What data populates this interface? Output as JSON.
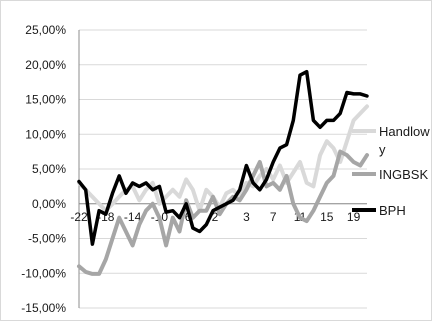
{
  "chart_data": {
    "type": "line",
    "title": "",
    "xlabel": "",
    "ylabel": "",
    "ylim": [
      -0.15,
      0.25
    ],
    "y_ticks": [
      "25,00%",
      "20,00%",
      "15,00%",
      "10,00%",
      "5,00%",
      "0,00%",
      "-5,00%",
      "-10,00%",
      "-15,00%"
    ],
    "x_tick_labels": [
      "-22",
      "-18",
      "-14",
      "-10",
      "-6",
      "-2",
      "3",
      "7",
      "11",
      "15",
      "19"
    ],
    "x_tick_values": [
      -22,
      -18,
      -14,
      -10,
      -6,
      -2,
      3,
      7,
      11,
      15,
      19
    ],
    "x": [
      -22,
      -21,
      -20,
      -19,
      -18,
      -17,
      -16,
      -15,
      -14,
      -13,
      -12,
      -11,
      -10,
      -9,
      -8,
      -7,
      -6,
      -5,
      -4,
      -3,
      -2,
      -1,
      0,
      1,
      2,
      3,
      4,
      5,
      6,
      7,
      8,
      9,
      10,
      11,
      12,
      13,
      14,
      15,
      16,
      17,
      18,
      19,
      20,
      21
    ],
    "grid": "horizontal",
    "legend_position": "right",
    "series": [
      {
        "name": "Handlowy",
        "legend_lines": [
          "Handlow",
          "y"
        ],
        "color": "#d9d9d9",
        "values": [
          0.03,
          0.02,
          0.01,
          0.0,
          -0.01,
          0.0,
          0.01,
          0.02,
          0.025,
          0.005,
          0.02,
          0.03,
          0.0,
          0.01,
          0.02,
          0.01,
          0.035,
          0.02,
          -0.01,
          0.02,
          0.01,
          -0.005,
          0.015,
          0.02,
          0.01,
          0.03,
          0.025,
          0.04,
          0.05,
          0.035,
          0.055,
          0.03,
          0.045,
          0.06,
          0.03,
          0.025,
          0.07,
          0.09,
          0.08,
          0.06,
          0.09,
          0.12,
          0.13,
          0.14
        ]
      },
      {
        "name": "INGBSK",
        "legend_lines": [
          "INGBSK"
        ],
        "color": "#a6a6a6",
        "values": [
          -0.09,
          -0.098,
          -0.101,
          -0.101,
          -0.08,
          -0.05,
          -0.02,
          -0.04,
          -0.06,
          -0.03,
          -0.01,
          0.0,
          -0.02,
          -0.06,
          -0.02,
          -0.04,
          0.005,
          -0.02,
          -0.01,
          -0.01,
          0.01,
          -0.015,
          0.0,
          0.01,
          0.005,
          0.02,
          0.04,
          0.06,
          0.025,
          0.03,
          0.02,
          0.04,
          0.0,
          -0.02,
          -0.025,
          -0.01,
          0.01,
          0.03,
          0.04,
          0.075,
          0.07,
          0.06,
          0.055,
          0.07
        ]
      },
      {
        "name": "BPH",
        "legend_lines": [
          "BPH"
        ],
        "color": "#000000",
        "values": [
          0.032,
          0.02,
          -0.058,
          -0.01,
          -0.015,
          0.015,
          0.04,
          0.015,
          0.03,
          0.025,
          0.03,
          0.02,
          0.025,
          -0.012,
          -0.01,
          -0.02,
          0.0,
          -0.035,
          -0.04,
          -0.03,
          -0.01,
          -0.005,
          0.0,
          0.005,
          0.02,
          0.055,
          0.03,
          0.02,
          0.035,
          0.06,
          0.08,
          0.085,
          0.12,
          0.185,
          0.19,
          0.12,
          0.11,
          0.12,
          0.12,
          0.13,
          0.16,
          0.158,
          0.158,
          0.155
        ]
      }
    ]
  }
}
